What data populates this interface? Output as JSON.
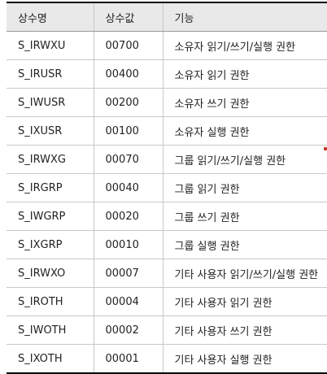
{
  "table": {
    "headers": [
      "상수명",
      "상수값",
      "기능"
    ],
    "rows": [
      [
        "S_IRWXU",
        "00700",
        "소유자 읽기/쓰기/실행 권한"
      ],
      [
        "S_IRUSR",
        "00400",
        "소유자 읽기 권한"
      ],
      [
        "S_IWUSR",
        "00200",
        "소유자 쓰기 권한"
      ],
      [
        "S_IXUSR",
        "00100",
        "소유자 실행 권한"
      ],
      [
        "S_IRWXG",
        "00070",
        "그룹 읽기/쓰기/실행 권한"
      ],
      [
        "S_IRGRP",
        "00040",
        "그룹 읽기 권한"
      ],
      [
        "S_IWGRP",
        "00020",
        "그룹 쓰기 권한"
      ],
      [
        "S_IXGRP",
        "00010",
        "그룹 실행 권한"
      ],
      [
        "S_IRWXO",
        "00007",
        "기타 사용자 읽기/쓰기/실행 권한"
      ],
      [
        "S_IROTH",
        "00004",
        "기타 사용자 읽기 권한"
      ],
      [
        "S_IWOTH",
        "00002",
        "기타 사용자 쓰기 권한"
      ],
      [
        "S_IXOTH",
        "00001",
        "기타 사용자 실행 권한"
      ]
    ]
  },
  "colors": {
    "header_background": "#e9e9e9",
    "rule": "#000000",
    "grid": "#c8c8c8",
    "marker": "#c0392b"
  }
}
